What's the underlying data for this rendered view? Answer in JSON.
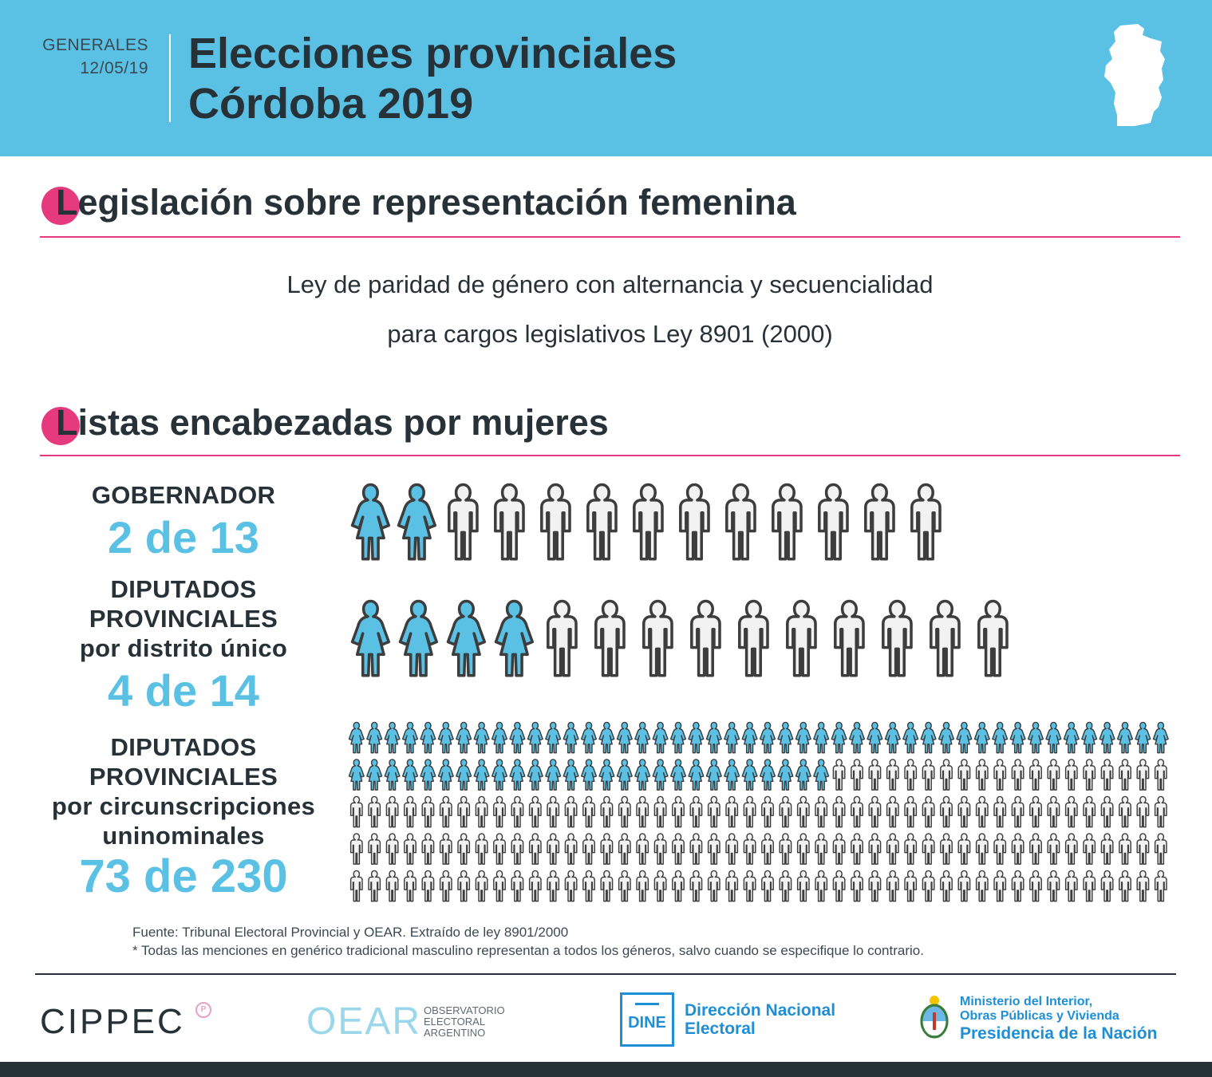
{
  "header": {
    "kicker_line1": "GENERALES",
    "kicker_line2": "12/05/19",
    "title_line1": "Elecciones provinciales",
    "title_line2": "Córdoba 2019"
  },
  "sections": {
    "legislation": {
      "initial": "L",
      "rest": "egislación sobre representación femenina",
      "law_line1": "Ley de paridad de género con alternancia y secuencialidad",
      "law_line2": "para cargos legislativos Ley 8901 (2000)"
    },
    "lists": {
      "initial": "L",
      "rest": "istas encabezadas por mujeres"
    }
  },
  "chart_data": {
    "type": "pictogram",
    "title": "Listas encabezadas por mujeres",
    "legend": {
      "women": "female figure (blue)",
      "men": "male figure (outline)"
    },
    "colors": {
      "female": "#5ac1e4",
      "male": "#f2f2f2",
      "outline": "#3d3d3d"
    },
    "rows": [
      {
        "label_lines": [
          "GOBERNADOR"
        ],
        "count_text": "2 de 13",
        "women": 2,
        "total": 13
      },
      {
        "label_lines": [
          "DIPUTADOS",
          "PROVINCIALES",
          "por distrito único"
        ],
        "count_text": "4 de 14",
        "women": 4,
        "total": 14
      },
      {
        "label_lines": [
          "DIPUTADOS",
          "PROVINCIALES",
          "por circunscripciones",
          "uninominales"
        ],
        "count_text": "73 de 230",
        "women": 73,
        "total": 230
      }
    ]
  },
  "footer": {
    "source_line1": "Fuente: Tribunal Electoral Provincial y OEAR. Extraído de ley 8901/2000",
    "source_line2": "* Todas las menciones en genérico tradicional masculino representan a todos los géneros, salvo cuando se especifique lo contrario.",
    "logos": {
      "cippec": "CIPPEC",
      "cippec_badge": "P",
      "oear": "OEAR",
      "oear_sub1": "OBSERVATORIO",
      "oear_sub2": "ELECTORAL",
      "oear_sub3": "ARGENTINO",
      "dine": "DINE",
      "dine_name1": "Dirección Nacional",
      "dine_name2": "Electoral",
      "ministry1": "Ministerio del Interior,",
      "ministry2": "Obras Públicas y Vivienda",
      "ministry3": "Presidencia de la Nación"
    }
  }
}
